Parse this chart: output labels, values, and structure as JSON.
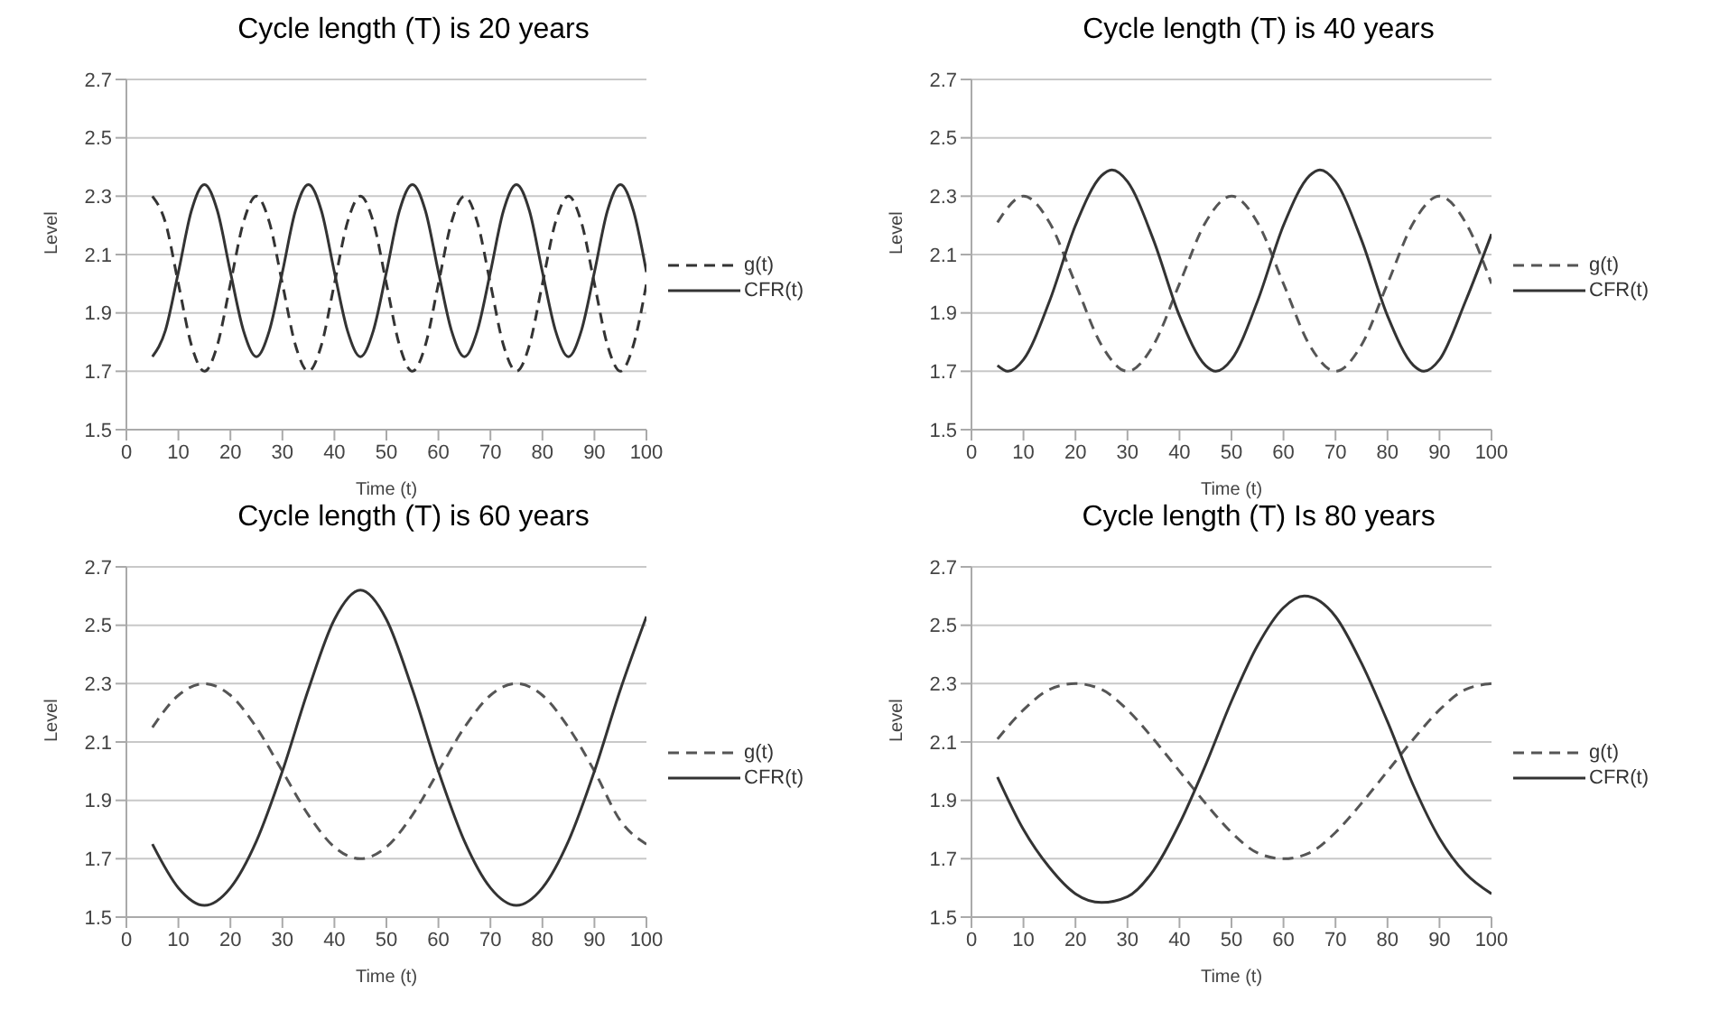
{
  "chart_data": [
    {
      "type": "line",
      "title": "Cycle length (T) is 20 years",
      "xlabel": "Time (t)",
      "ylabel": "Level",
      "x": [
        5,
        7.5,
        10,
        12.5,
        15,
        17.5,
        20,
        22.5,
        25,
        27.5,
        30,
        32.5,
        35,
        37.5,
        40,
        42.5,
        45,
        47.5,
        50,
        52.5,
        55,
        57.5,
        60,
        62.5,
        65,
        67.5,
        70,
        72.5,
        75,
        77.5,
        80,
        82.5,
        85,
        87.5,
        90,
        92.5,
        95,
        97.5,
        100
      ],
      "series": [
        {
          "name": "g(t)",
          "color": "#333333",
          "line_style": "dashed",
          "values": [
            2.3,
            2.21,
            2.0,
            1.79,
            1.7,
            1.79,
            2.0,
            2.21,
            2.3,
            2.21,
            2.0,
            1.79,
            1.7,
            1.79,
            2.0,
            2.21,
            2.3,
            2.21,
            2.0,
            1.79,
            1.7,
            1.79,
            2.0,
            2.21,
            2.3,
            2.21,
            2.0,
            1.79,
            1.7,
            1.79,
            2.0,
            2.21,
            2.3,
            2.21,
            2.0,
            1.79,
            1.7,
            1.79,
            2.0
          ]
        },
        {
          "name": "CFR(t)",
          "color": "#333333",
          "line_style": "solid",
          "values": [
            1.75,
            1.84,
            2.04,
            2.25,
            2.34,
            2.25,
            2.04,
            1.84,
            1.75,
            1.84,
            2.04,
            2.25,
            2.34,
            2.25,
            2.04,
            1.84,
            1.75,
            1.84,
            2.04,
            2.25,
            2.34,
            2.25,
            2.04,
            1.84,
            1.75,
            1.84,
            2.04,
            2.25,
            2.34,
            2.25,
            2.04,
            1.84,
            1.75,
            1.84,
            2.04,
            2.25,
            2.34,
            2.25,
            2.04
          ]
        }
      ],
      "xlim": [
        0,
        100
      ],
      "xticks": [
        0,
        10,
        20,
        30,
        40,
        50,
        60,
        70,
        80,
        90,
        100
      ],
      "ylim": [
        1.5,
        2.7
      ],
      "yticks": [
        1.5,
        1.7,
        1.9,
        2.1,
        2.3,
        2.5,
        2.7
      ],
      "grid": "y",
      "legend": "right"
    },
    {
      "type": "line",
      "title": "Cycle length (T) is 40 years",
      "xlabel": "Time (t)",
      "ylabel": "Level",
      "x": [
        5,
        10,
        15,
        20,
        25,
        30,
        35,
        40,
        45,
        50,
        55,
        60,
        65,
        70,
        75,
        80,
        85,
        90,
        95,
        100
      ],
      "series": [
        {
          "name": "g(t)",
          "color": "#555555",
          "line_style": "dashed",
          "values": [
            2.21,
            2.3,
            2.21,
            2.0,
            1.79,
            1.7,
            1.79,
            2.0,
            2.21,
            2.3,
            2.21,
            2.0,
            1.79,
            1.7,
            1.79,
            2.0,
            2.21,
            2.3,
            2.21,
            2.0
          ]
        },
        {
          "name": "CFR(t)",
          "color": "#333333",
          "line_style": "solid",
          "x": [
            5,
            7,
            10,
            15,
            20,
            25,
            27,
            30,
            35,
            40,
            45,
            47,
            50,
            55,
            60,
            65,
            67,
            70,
            75,
            80,
            85,
            87,
            90,
            95,
            100
          ],
          "values": [
            1.72,
            1.7,
            1.74,
            1.94,
            2.2,
            2.37,
            2.39,
            2.35,
            2.15,
            1.89,
            1.72,
            1.7,
            1.74,
            1.94,
            2.2,
            2.37,
            2.39,
            2.35,
            2.15,
            1.89,
            1.72,
            1.7,
            1.74,
            1.94,
            2.17
          ]
        }
      ],
      "xlim": [
        0,
        100
      ],
      "xticks": [
        0,
        10,
        20,
        30,
        40,
        50,
        60,
        70,
        80,
        90,
        100
      ],
      "ylim": [
        1.5,
        2.7
      ],
      "yticks": [
        1.5,
        1.7,
        1.9,
        2.1,
        2.3,
        2.5,
        2.7
      ],
      "grid": "y",
      "legend": "right"
    },
    {
      "type": "line",
      "title": "Cycle length (T) is 60 years",
      "xlabel": "Time (t)",
      "ylabel": "Level",
      "x": [
        5,
        10,
        15,
        20,
        25,
        30,
        35,
        40,
        45,
        50,
        55,
        60,
        65,
        70,
        75,
        80,
        85,
        90,
        95,
        100
      ],
      "series": [
        {
          "name": "g(t)",
          "color": "#555555",
          "line_style": "dashed",
          "values": [
            2.15,
            2.26,
            2.3,
            2.26,
            2.15,
            2.0,
            1.85,
            1.74,
            1.7,
            1.74,
            1.85,
            2.0,
            2.15,
            2.26,
            2.3,
            2.26,
            2.15,
            2.0,
            1.83,
            1.75
          ]
        },
        {
          "name": "CFR(t)",
          "color": "#333333",
          "line_style": "solid",
          "values": [
            1.75,
            1.6,
            1.54,
            1.6,
            1.76,
            2.0,
            2.28,
            2.52,
            2.62,
            2.52,
            2.28,
            2.0,
            1.76,
            1.6,
            1.54,
            1.6,
            1.76,
            2.0,
            2.28,
            2.53
          ]
        }
      ],
      "xlim": [
        0,
        100
      ],
      "xticks": [
        0,
        10,
        20,
        30,
        40,
        50,
        60,
        70,
        80,
        90,
        100
      ],
      "ylim": [
        1.5,
        2.7
      ],
      "yticks": [
        1.5,
        1.7,
        1.9,
        2.1,
        2.3,
        2.5,
        2.7
      ],
      "grid": "y",
      "legend": "right"
    },
    {
      "type": "line",
      "title": "Cycle length (T) Is 80 years",
      "xlabel": "Time (t)",
      "ylabel": "Level",
      "x": [
        5,
        10,
        15,
        20,
        25,
        30,
        35,
        40,
        45,
        50,
        55,
        60,
        65,
        70,
        75,
        80,
        85,
        90,
        95,
        100
      ],
      "series": [
        {
          "name": "g(t)",
          "color": "#555555",
          "line_style": "dashed",
          "values": [
            2.11,
            2.21,
            2.28,
            2.3,
            2.28,
            2.21,
            2.11,
            2.0,
            1.89,
            1.79,
            1.72,
            1.7,
            1.72,
            1.79,
            1.89,
            2.0,
            2.11,
            2.21,
            2.28,
            2.3
          ]
        },
        {
          "name": "CFR(t)",
          "color": "#333333",
          "line_style": "solid",
          "x": [
            5,
            10,
            15,
            20,
            25,
            30,
            35,
            40,
            45,
            50,
            55,
            60,
            64,
            70,
            75,
            80,
            85,
            90,
            95,
            100
          ],
          "values": [
            1.98,
            1.8,
            1.67,
            1.58,
            1.55,
            1.57,
            1.66,
            1.82,
            2.02,
            2.24,
            2.43,
            2.56,
            2.6,
            2.53,
            2.37,
            2.17,
            1.95,
            1.77,
            1.65,
            1.58
          ]
        }
      ],
      "xlim": [
        0,
        100
      ],
      "xticks": [
        0,
        10,
        20,
        30,
        40,
        50,
        60,
        70,
        80,
        90,
        100
      ],
      "ylim": [
        1.5,
        2.7
      ],
      "yticks": [
        1.5,
        1.7,
        1.9,
        2.1,
        2.3,
        2.5,
        2.7
      ],
      "grid": "y",
      "legend": "right"
    }
  ]
}
